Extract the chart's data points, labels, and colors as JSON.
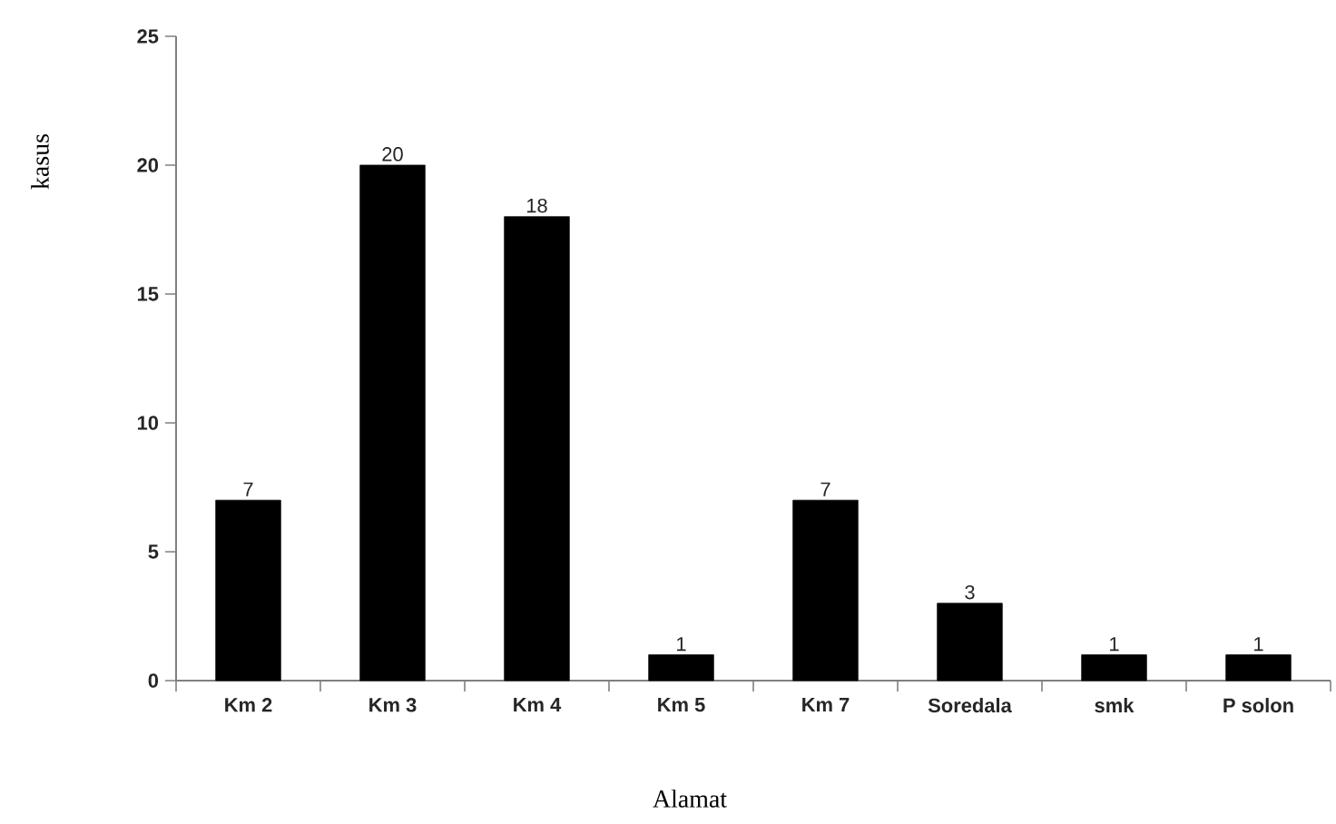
{
  "chart_data": {
    "type": "bar",
    "xlabel": "Alamat",
    "ylabel": "kasus",
    "categories": [
      "Km 2",
      "Km 3",
      "Km 4",
      "Km 5",
      "Km 7",
      "Soredala",
      "smk",
      "P solon"
    ],
    "values": [
      7,
      20,
      18,
      1,
      7,
      3,
      1,
      1
    ],
    "color": "#000000",
    "ylim": [
      0,
      25
    ],
    "yticks": [
      0,
      5,
      10,
      15,
      20,
      25
    ],
    "data_labels": true,
    "grid": false
  }
}
